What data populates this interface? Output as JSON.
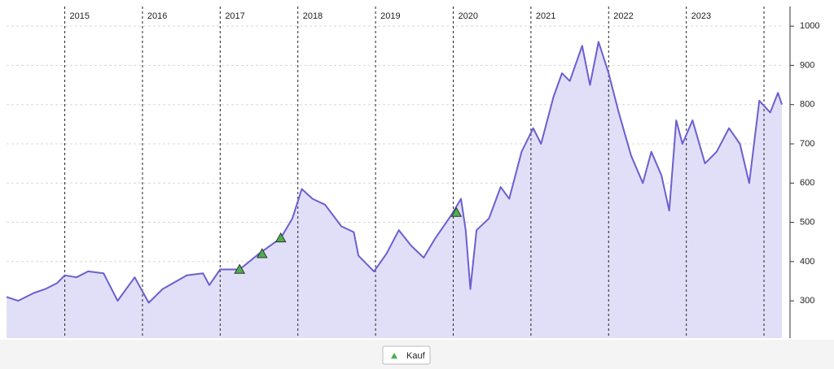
{
  "chart_data": {
    "type": "area",
    "x": [
      2014.25,
      2014.4,
      2014.6,
      2014.75,
      2014.9,
      2015.0,
      2015.15,
      2015.3,
      2015.5,
      2015.68,
      2015.9,
      2016.08,
      2016.26,
      2016.57,
      2016.78,
      2016.86,
      2017.0,
      2017.25,
      2017.5,
      2017.78,
      2017.93,
      2018.05,
      2018.19,
      2018.35,
      2018.56,
      2018.72,
      2018.78,
      2018.98,
      2019.14,
      2019.3,
      2019.46,
      2019.62,
      2019.77,
      2019.98,
      2020.1,
      2020.16,
      2020.22,
      2020.3,
      2020.46,
      2020.61,
      2020.72,
      2020.88,
      2021.03,
      2021.13,
      2021.29,
      2021.4,
      2021.5,
      2021.66,
      2021.76,
      2021.87,
      2022.0,
      2022.13,
      2022.29,
      2022.44,
      2022.55,
      2022.68,
      2022.78,
      2022.87,
      2022.95,
      2023.08,
      2023.24,
      2023.39,
      2023.55,
      2023.69,
      2023.81,
      2023.94,
      2024.08,
      2024.18,
      2024.23
    ],
    "series": [
      {
        "color": "#6a5fd0",
        "fill": "#e1dff7",
        "values": [
          310,
          300,
          320,
          330,
          345,
          365,
          360,
          375,
          370,
          300,
          360,
          295,
          330,
          365,
          370,
          340,
          380,
          380,
          420,
          460,
          510,
          585,
          560,
          545,
          490,
          475,
          415,
          375,
          420,
          480,
          440,
          410,
          460,
          520,
          560,
          480,
          330,
          480,
          510,
          590,
          560,
          680,
          740,
          700,
          820,
          880,
          860,
          950,
          850,
          960,
          880,
          780,
          670,
          600,
          680,
          620,
          530,
          760,
          700,
          760,
          650,
          680,
          740,
          700,
          600,
          810,
          780,
          830,
          800
        ]
      }
    ],
    "markers": {
      "name": "Kauf",
      "color": "#4caf50",
      "x": [
        2017.25,
        2017.54,
        2017.78,
        2020.04
      ],
      "values": [
        380,
        420,
        460,
        525
      ]
    },
    "xlim": [
      2014.25,
      2024.23
    ],
    "xticks": [
      2015,
      2016,
      2017,
      2018,
      2019,
      2020,
      2021,
      2022,
      2023,
      {
        "value": 2024,
        "label": null
      }
    ],
    "ylim": [
      205,
      1050
    ],
    "yticks": [
      300,
      400,
      500,
      600,
      700,
      800,
      900,
      1000
    ],
    "grid": true
  }
}
